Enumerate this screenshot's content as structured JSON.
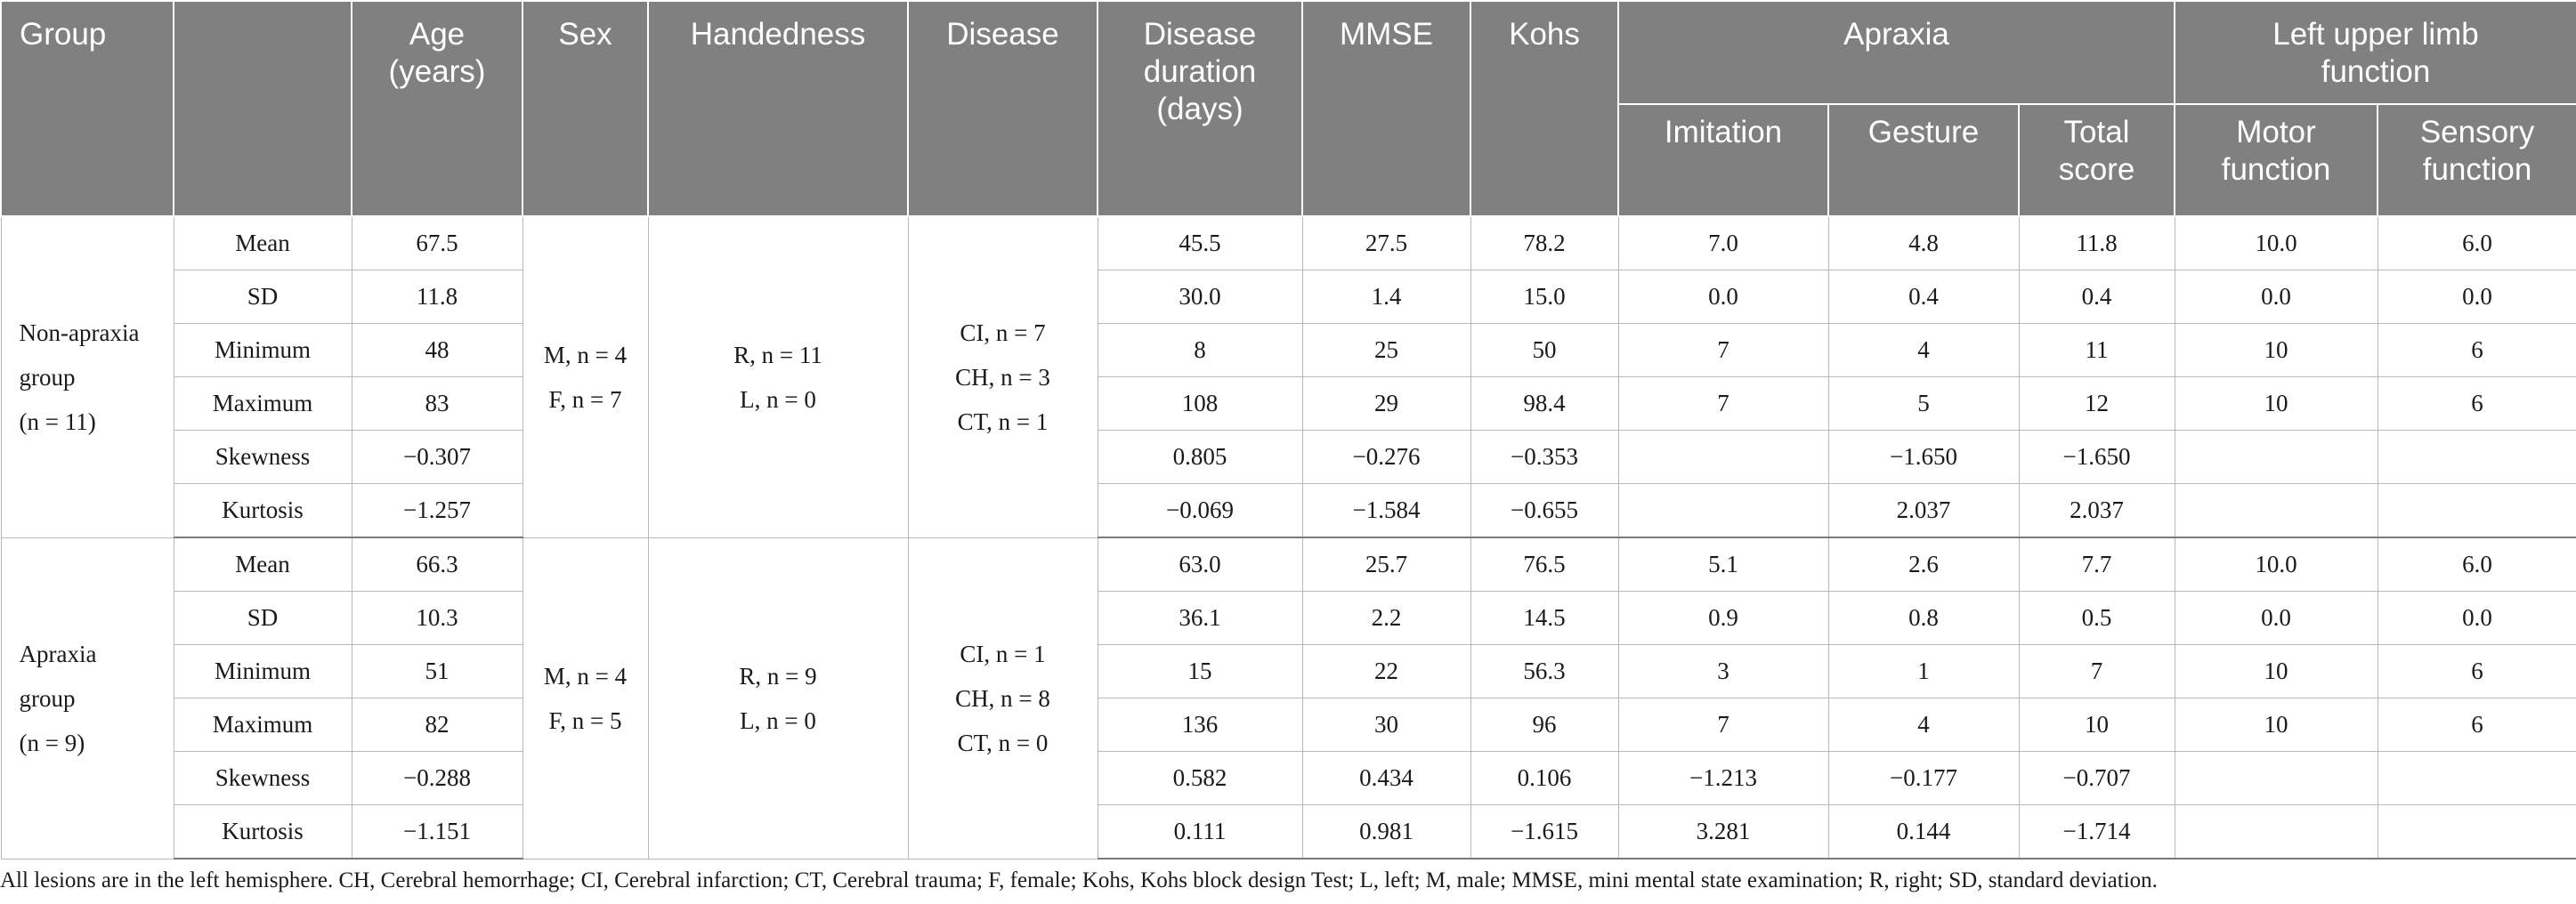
{
  "headers": {
    "group": "Group",
    "stat": "",
    "age": [
      "Age",
      "(years)"
    ],
    "sex": "Sex",
    "handedness": "Handedness",
    "disease": "Disease",
    "disease_duration": [
      "Disease",
      "duration",
      "(days)"
    ],
    "mmse": "MMSE",
    "kohs": "Kohs",
    "apraxia": "Apraxia",
    "apraxia_sub": [
      "Imitation",
      "Gesture",
      [
        "Total",
        "score"
      ]
    ],
    "lulf": [
      "Left upper limb",
      "function"
    ],
    "lulf_sub": [
      [
        "Motor",
        "function"
      ],
      [
        "Sensory",
        "function"
      ]
    ]
  },
  "groups": [
    {
      "label": [
        "Non-apraxia",
        "group",
        "(n = 11)"
      ],
      "sex": [
        "M, n = 4",
        "F, n = 7"
      ],
      "handedness": [
        "R, n = 11",
        "L, n = 0"
      ],
      "disease": [
        "CI, n = 7",
        "CH, n = 3",
        "CT, n = 1"
      ],
      "rows": [
        {
          "stat": "Mean",
          "vals": [
            "67.5",
            "45.5",
            "27.5",
            "78.2",
            "7.0",
            "4.8",
            "11.8",
            "10.0",
            "6.0"
          ]
        },
        {
          "stat": "SD",
          "vals": [
            "11.8",
            "30.0",
            "1.4",
            "15.0",
            "0.0",
            "0.4",
            "0.4",
            "0.0",
            "0.0"
          ]
        },
        {
          "stat": "Minimum",
          "vals": [
            "48",
            "8",
            "25",
            "50",
            "7",
            "4",
            "11",
            "10",
            "6"
          ]
        },
        {
          "stat": "Maximum",
          "vals": [
            "83",
            "108",
            "29",
            "98.4",
            "7",
            "5",
            "12",
            "10",
            "6"
          ]
        },
        {
          "stat": "Skewness",
          "vals": [
            "−0.307",
            "0.805",
            "−0.276",
            "−0.353",
            "",
            "−1.650",
            "−1.650",
            "",
            ""
          ]
        },
        {
          "stat": "Kurtosis",
          "vals": [
            "−1.257",
            "−0.069",
            "−1.584",
            "−0.655",
            "",
            "2.037",
            "2.037",
            "",
            ""
          ]
        }
      ]
    },
    {
      "label": [
        "Apraxia",
        "group",
        "(n = 9)"
      ],
      "sex": [
        "M, n = 4",
        "F, n = 5"
      ],
      "handedness": [
        "R, n = 9",
        "L, n = 0"
      ],
      "disease": [
        "CI, n = 1",
        "CH, n = 8",
        "CT, n = 0"
      ],
      "rows": [
        {
          "stat": "Mean",
          "vals": [
            "66.3",
            "63.0",
            "25.7",
            "76.5",
            "5.1",
            "2.6",
            "7.7",
            "10.0",
            "6.0"
          ]
        },
        {
          "stat": "SD",
          "vals": [
            "10.3",
            "36.1",
            "2.2",
            "14.5",
            "0.9",
            "0.8",
            "0.5",
            "0.0",
            "0.0"
          ]
        },
        {
          "stat": "Minimum",
          "vals": [
            "51",
            "15",
            "22",
            "56.3",
            "3",
            "1",
            "7",
            "10",
            "6"
          ]
        },
        {
          "stat": "Maximum",
          "vals": [
            "82",
            "136",
            "30",
            "96",
            "7",
            "4",
            "10",
            "10",
            "6"
          ]
        },
        {
          "stat": "Skewness",
          "vals": [
            "−0.288",
            "0.582",
            "0.434",
            "0.106",
            "−1.213",
            "−0.177",
            "−0.707",
            "",
            ""
          ]
        },
        {
          "stat": "Kurtosis",
          "vals": [
            "−1.151",
            "0.111",
            "0.981",
            "−1.615",
            "3.281",
            "0.144",
            "−1.714",
            "",
            ""
          ]
        }
      ]
    }
  ],
  "footnote": "All lesions are in the left hemisphere. CH, Cerebral hemorrhage; CI, Cerebral infarction; CT, Cerebral trauma; F, female; Kohs, Kohs block design Test; L, left; M, male; MMSE, mini mental state examination; R, right; SD, standard deviation."
}
